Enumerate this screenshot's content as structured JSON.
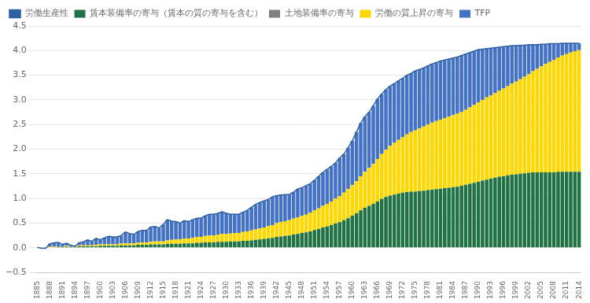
{
  "chart_data": {
    "type": "bar",
    "categories": [
      "1885",
      null,
      null,
      "1888",
      null,
      null,
      "1891",
      null,
      null,
      "1894",
      null,
      null,
      "1897",
      null,
      null,
      "1900",
      null,
      null,
      "1903",
      null,
      null,
      "1906",
      null,
      null,
      "1909",
      null,
      null,
      "1912",
      null,
      null,
      "1915",
      null,
      null,
      "1918",
      null,
      null,
      "1921",
      null,
      null,
      "1924",
      null,
      null,
      "1927",
      null,
      null,
      "1930",
      null,
      null,
      "1933",
      null,
      null,
      "1936",
      null,
      null,
      "1939",
      null,
      null,
      "1942",
      null,
      null,
      "1945",
      null,
      null,
      "1948",
      null,
      null,
      "1951",
      null,
      null,
      "1954",
      null,
      null,
      "1957",
      null,
      null,
      "1960",
      null,
      null,
      "1963",
      null,
      null,
      "1966",
      null,
      null,
      "1969",
      null,
      null,
      "1972",
      null,
      null,
      "1975",
      null,
      null,
      "1978",
      null,
      null,
      "1981",
      null,
      null,
      "1984",
      null,
      null,
      "1987",
      null,
      null,
      "1990",
      null,
      null,
      "1993",
      null,
      null,
      "1996",
      null,
      null,
      "1999",
      null,
      null,
      "2002",
      null,
      null,
      "2005",
      null,
      null,
      "2008",
      null,
      null,
      "2011",
      null,
      null,
      "2014"
    ],
    "series": [
      {
        "name": "賃本装備率の寄与（賃本の質の寄与を含む）",
        "color": "#217346",
        "values": [
          0.0,
          0.01,
          0.01,
          0.01,
          0.01,
          0.02,
          0.02,
          0.02,
          0.02,
          0.02,
          0.03,
          0.03,
          0.03,
          0.03,
          0.03,
          0.04,
          0.04,
          0.04,
          0.04,
          0.04,
          0.05,
          0.05,
          0.05,
          0.05,
          0.06,
          0.06,
          0.06,
          0.07,
          0.07,
          0.07,
          0.07,
          0.08,
          0.08,
          0.08,
          0.08,
          0.09,
          0.09,
          0.09,
          0.1,
          0.1,
          0.11,
          0.11,
          0.11,
          0.12,
          0.12,
          0.12,
          0.13,
          0.13,
          0.13,
          0.14,
          0.14,
          0.15,
          0.16,
          0.17,
          0.18,
          0.19,
          0.2,
          0.22,
          0.23,
          0.24,
          0.25,
          0.27,
          0.28,
          0.3,
          0.31,
          0.33,
          0.36,
          0.38,
          0.41,
          0.43,
          0.46,
          0.49,
          0.52,
          0.56,
          0.6,
          0.65,
          0.7,
          0.76,
          0.81,
          0.85,
          0.89,
          0.94,
          0.99,
          1.03,
          1.06,
          1.08,
          1.1,
          1.12,
          1.13,
          1.14,
          1.14,
          1.15,
          1.16,
          1.17,
          1.18,
          1.19,
          1.2,
          1.21,
          1.22,
          1.23,
          1.24,
          1.26,
          1.28,
          1.3,
          1.32,
          1.34,
          1.36,
          1.38,
          1.4,
          1.42,
          1.44,
          1.45,
          1.47,
          1.48,
          1.49,
          1.5,
          1.51,
          1.52,
          1.53,
          1.53,
          1.53,
          1.53,
          1.53,
          1.53,
          1.54,
          1.54,
          1.54,
          1.54,
          1.54,
          1.54
        ]
      },
      {
        "name": "土地装備率の寄与",
        "color": "#7F7F7F",
        "values": [
          0.0,
          0.0,
          0.0,
          0.0,
          0.0,
          0.0,
          0.0,
          0.0,
          0.0,
          0.0,
          0.0,
          0.0,
          0.0,
          0.0,
          0.0,
          0.0,
          0.0,
          0.0,
          0.0,
          0.0,
          0.0,
          0.0,
          0.0,
          0.0,
          0.0,
          0.0,
          0.0,
          0.0,
          0.0,
          0.0,
          0.0,
          0.0,
          0.0,
          0.0,
          0.0,
          0.0,
          0.0,
          0.0,
          0.0,
          0.0,
          0.0,
          0.0,
          0.0,
          0.0,
          0.0,
          0.0,
          0.0,
          0.0,
          0.0,
          0.0,
          0.0,
          0.0,
          0.0,
          0.0,
          0.0,
          0.0,
          0.0,
          0.0,
          0.0,
          0.0,
          0.0,
          0.0,
          0.0,
          0.0,
          0.0,
          0.0,
          0.0,
          0.0,
          0.0,
          0.0,
          0.0,
          0.0,
          0.0,
          0.0,
          0.0,
          0.0,
          0.0,
          0.0,
          0.0,
          0.0,
          0.0,
          0.0,
          0.0,
          0.0,
          0.0,
          0.0,
          0.0,
          0.0,
          0.0,
          0.0,
          0.0,
          0.0,
          0.0,
          0.0,
          0.0,
          0.0,
          0.0,
          0.0,
          0.0,
          0.0,
          0.0,
          0.0,
          0.0,
          0.0,
          0.0,
          0.0,
          0.0,
          0.0,
          0.0,
          0.0,
          0.0,
          0.0,
          0.0,
          0.0,
          0.0,
          0.0,
          0.0,
          0.0,
          0.0,
          0.0,
          0.0,
          0.0,
          0.0,
          0.0,
          0.0,
          0.0,
          0.0,
          0.0,
          0.0,
          0.0
        ]
      },
      {
        "name": "労働の質上昇の寄与",
        "color": "#FFD700",
        "values": [
          0.0,
          0.0,
          0.0,
          0.01,
          0.01,
          0.01,
          0.01,
          0.02,
          0.01,
          0.01,
          0.02,
          0.02,
          0.02,
          0.02,
          0.03,
          0.03,
          0.03,
          0.03,
          0.03,
          0.03,
          0.04,
          0.04,
          0.04,
          0.04,
          0.04,
          0.05,
          0.05,
          0.05,
          0.06,
          0.06,
          0.06,
          0.07,
          0.08,
          0.09,
          0.09,
          0.1,
          0.1,
          0.11,
          0.12,
          0.12,
          0.13,
          0.14,
          0.14,
          0.15,
          0.16,
          0.16,
          0.16,
          0.17,
          0.17,
          0.18,
          0.19,
          0.2,
          0.21,
          0.22,
          0.23,
          0.25,
          0.26,
          0.28,
          0.29,
          0.3,
          0.31,
          0.32,
          0.33,
          0.35,
          0.36,
          0.38,
          0.4,
          0.42,
          0.44,
          0.46,
          0.48,
          0.51,
          0.53,
          0.56,
          0.59,
          0.62,
          0.65,
          0.69,
          0.73,
          0.77,
          0.81,
          0.86,
          0.91,
          0.96,
          1.01,
          1.05,
          1.09,
          1.13,
          1.17,
          1.21,
          1.24,
          1.27,
          1.3,
          1.33,
          1.36,
          1.38,
          1.4,
          1.42,
          1.44,
          1.46,
          1.48,
          1.5,
          1.52,
          1.55,
          1.58,
          1.61,
          1.64,
          1.67,
          1.69,
          1.72,
          1.75,
          1.78,
          1.81,
          1.85,
          1.88,
          1.92,
          1.96,
          2.0,
          2.05,
          2.1,
          2.15,
          2.2,
          2.24,
          2.28,
          2.32,
          2.36,
          2.39,
          2.42,
          2.45,
          2.47
        ]
      },
      {
        "name": "TFP",
        "color": "#4472C4",
        "values": [
          0.01,
          0.0,
          0.0,
          0.06,
          0.08,
          0.08,
          0.04,
          0.05,
          0.02,
          0.0,
          0.05,
          0.07,
          0.11,
          0.08,
          0.13,
          0.09,
          0.13,
          0.16,
          0.15,
          0.15,
          0.16,
          0.23,
          0.2,
          0.18,
          0.23,
          0.24,
          0.24,
          0.3,
          0.3,
          0.27,
          0.34,
          0.42,
          0.38,
          0.36,
          0.33,
          0.36,
          0.34,
          0.37,
          0.38,
          0.38,
          0.41,
          0.43,
          0.43,
          0.43,
          0.45,
          0.42,
          0.39,
          0.38,
          0.38,
          0.4,
          0.43,
          0.47,
          0.51,
          0.53,
          0.54,
          0.54,
          0.57,
          0.56,
          0.55,
          0.54,
          0.52,
          0.54,
          0.58,
          0.57,
          0.59,
          0.59,
          0.61,
          0.65,
          0.68,
          0.7,
          0.71,
          0.72,
          0.77,
          0.78,
          0.84,
          0.9,
          1.0,
          1.08,
          1.12,
          1.13,
          1.18,
          1.22,
          1.22,
          1.22,
          1.21,
          1.2,
          1.2,
          1.19,
          1.2,
          1.19,
          1.21,
          1.2,
          1.19,
          1.19,
          1.19,
          1.19,
          1.19,
          1.18,
          1.17,
          1.16,
          1.15,
          1.14,
          1.13,
          1.11,
          1.09,
          1.07,
          1.03,
          0.99,
          0.96,
          0.92,
          0.88,
          0.85,
          0.81,
          0.77,
          0.73,
          0.69,
          0.64,
          0.6,
          0.54,
          0.49,
          0.45,
          0.4,
          0.37,
          0.33,
          0.28,
          0.25,
          0.22,
          0.19,
          0.16,
          0.14
        ]
      },
      {
        "name": "労働生産性",
        "type": "line",
        "color": "#2E5FA3",
        "values": [
          0.01,
          -0.01,
          -0.01,
          0.08,
          0.1,
          0.11,
          0.07,
          0.09,
          0.05,
          0.03,
          0.1,
          0.12,
          0.16,
          0.13,
          0.19,
          0.16,
          0.2,
          0.23,
          0.22,
          0.22,
          0.25,
          0.32,
          0.29,
          0.27,
          0.33,
          0.35,
          0.35,
          0.42,
          0.43,
          0.4,
          0.47,
          0.57,
          0.54,
          0.53,
          0.5,
          0.55,
          0.53,
          0.57,
          0.6,
          0.6,
          0.65,
          0.68,
          0.68,
          0.7,
          0.73,
          0.7,
          0.68,
          0.68,
          0.68,
          0.72,
          0.76,
          0.82,
          0.88,
          0.92,
          0.95,
          0.98,
          1.03,
          1.06,
          1.07,
          1.08,
          1.08,
          1.13,
          1.19,
          1.22,
          1.26,
          1.3,
          1.37,
          1.45,
          1.53,
          1.59,
          1.65,
          1.72,
          1.82,
          1.9,
          2.03,
          2.17,
          2.35,
          2.53,
          2.66,
          2.75,
          2.88,
          3.02,
          3.12,
          3.21,
          3.28,
          3.33,
          3.39,
          3.44,
          3.5,
          3.54,
          3.59,
          3.62,
          3.65,
          3.69,
          3.73,
          3.76,
          3.79,
          3.81,
          3.83,
          3.85,
          3.87,
          3.9,
          3.93,
          3.96,
          3.99,
          4.02,
          4.03,
          4.04,
          4.05,
          4.06,
          4.07,
          4.08,
          4.09,
          4.1,
          4.1,
          4.11,
          4.11,
          4.12,
          4.12,
          4.12,
          4.13,
          4.13,
          4.14,
          4.14,
          4.14,
          4.15,
          4.15,
          4.15,
          4.15,
          4.15
        ]
      }
    ],
    "stacked": true,
    "ylim": [
      -0.5,
      4.5
    ],
    "yticks": [
      {
        "value": -0.5,
        "label": "−0.5"
      },
      {
        "value": 0,
        "label": "0.0"
      },
      0.5,
      {
        "value": 1,
        "label": "1.0"
      },
      1.5,
      {
        "value": 2,
        "label": "2.0"
      },
      2.5,
      {
        "value": 3,
        "label": "3.0"
      },
      3.5,
      {
        "value": 4,
        "label": "4.0"
      },
      4.5
    ],
    "grid": "y",
    "legend": "upper left"
  }
}
